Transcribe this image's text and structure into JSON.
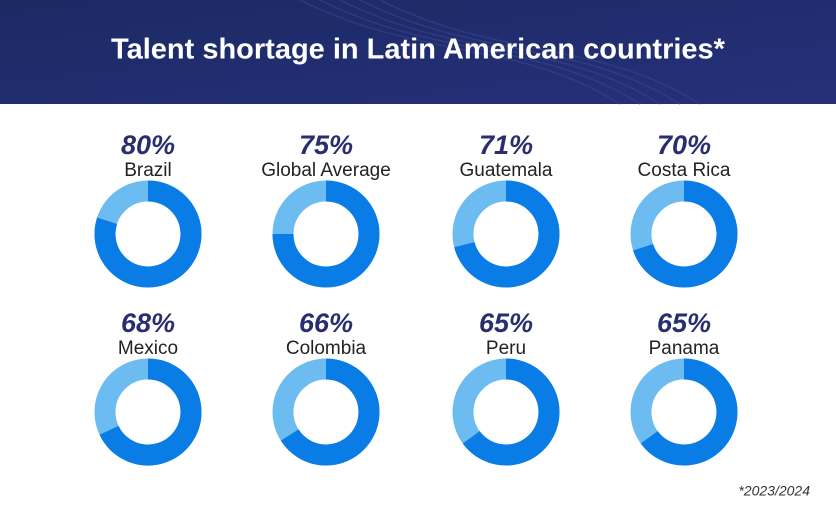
{
  "title": "Talent shortage in Latin American countries*",
  "footnote": "*2023/2024",
  "chart_data": [
    {
      "type": "donut",
      "categories": [
        "Brazil"
      ],
      "values": [
        80
      ],
      "value_labels": [
        "80%"
      ],
      "color": "#0a7ce6",
      "track_color": "#6dbcf1"
    },
    {
      "type": "donut",
      "categories": [
        "Global Average"
      ],
      "values": [
        75
      ],
      "value_labels": [
        "75%"
      ],
      "color": "#0a7ce6",
      "track_color": "#6dbcf1"
    },
    {
      "type": "donut",
      "categories": [
        "Guatemala"
      ],
      "values": [
        71
      ],
      "value_labels": [
        "71%"
      ],
      "color": "#0a7ce6",
      "track_color": "#6dbcf1"
    },
    {
      "type": "donut",
      "categories": [
        "Costa Rica"
      ],
      "values": [
        70
      ],
      "value_labels": [
        "70%"
      ],
      "color": "#0a7ce6",
      "track_color": "#6dbcf1"
    },
    {
      "type": "donut",
      "categories": [
        "Mexico"
      ],
      "values": [
        68
      ],
      "value_labels": [
        "68%"
      ],
      "color": "#0a7ce6",
      "track_color": "#6dbcf1"
    },
    {
      "type": "donut",
      "categories": [
        "Colombia"
      ],
      "values": [
        66
      ],
      "value_labels": [
        "66%"
      ],
      "color": "#0a7ce6",
      "track_color": "#6dbcf1"
    },
    {
      "type": "donut",
      "categories": [
        "Peru"
      ],
      "values": [
        65
      ],
      "value_labels": [
        "65%"
      ],
      "color": "#0a7ce6",
      "track_color": "#6dbcf1"
    },
    {
      "type": "donut",
      "categories": [
        "Panama"
      ],
      "values": [
        65
      ],
      "value_labels": [
        "65%"
      ],
      "color": "#0a7ce6",
      "track_color": "#6dbcf1"
    }
  ]
}
